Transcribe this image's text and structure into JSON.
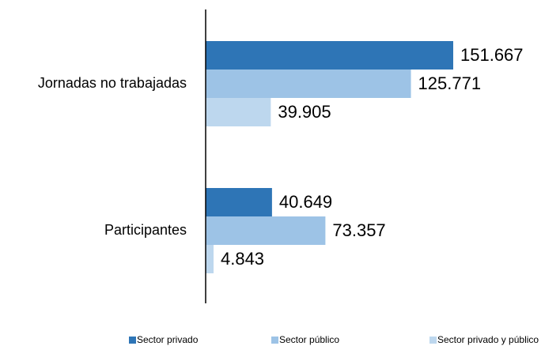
{
  "chart_data": {
    "type": "bar",
    "orientation": "horizontal",
    "categories": [
      "Jornadas no trabajadas",
      "Participantes"
    ],
    "series": [
      {
        "name": "Sector privado",
        "color": "#2e75b6",
        "values": [
          151667,
          40649
        ],
        "value_labels": [
          "151.667",
          "40.649"
        ]
      },
      {
        "name": "Sector público",
        "color": "#9dc3e6",
        "values": [
          125771,
          73357
        ],
        "value_labels": [
          "125.771",
          "73.357"
        ]
      },
      {
        "name": "Sector privado y público",
        "color": "#bdd7ee",
        "values": [
          39905,
          4843
        ],
        "value_labels": [
          "39.905",
          "4.843"
        ]
      }
    ],
    "legend": "bottom"
  }
}
